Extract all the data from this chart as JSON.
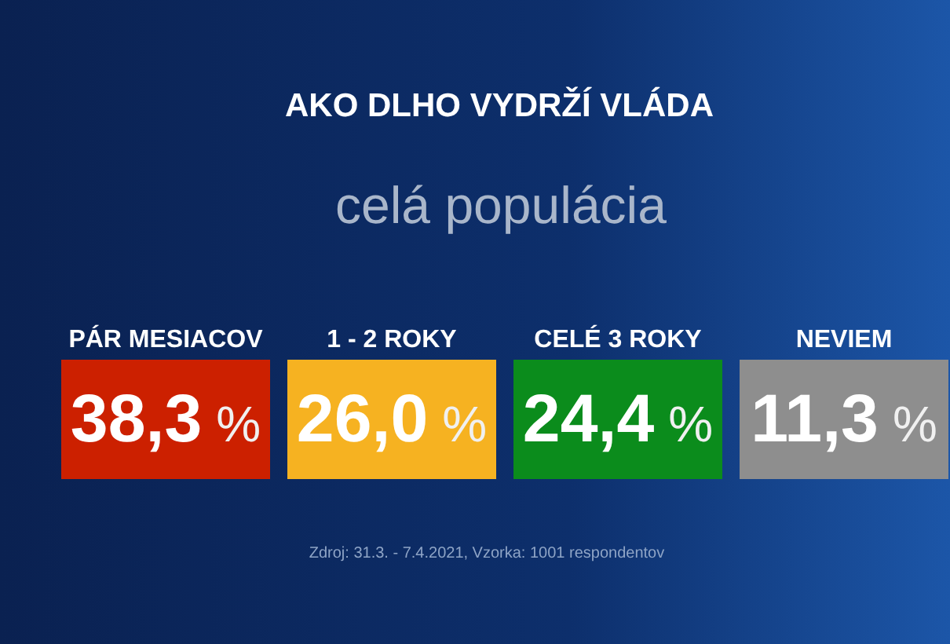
{
  "chart_data": {
    "type": "other",
    "title": "AKO DLHO VYDRŽÍ VLÁDA",
    "subtitle": "celá populácia",
    "categories": [
      "PÁR MESIACOV",
      "1 - 2 ROKY",
      "CELÉ 3 ROKY",
      "NEVIEM"
    ],
    "values": [
      38.3,
      26.0,
      24.4,
      11.3
    ],
    "value_labels": [
      "38,3 %",
      "26,0 %",
      "24,4 %",
      "11,3 %"
    ],
    "colors": [
      "#cc2000",
      "#f6b221",
      "#0b8c1c",
      "#8e8e8e"
    ],
    "annotations": [
      "Zdroj: 31.3. - 7.4.2021, Vzorka: 1001 respondentov"
    ]
  }
}
